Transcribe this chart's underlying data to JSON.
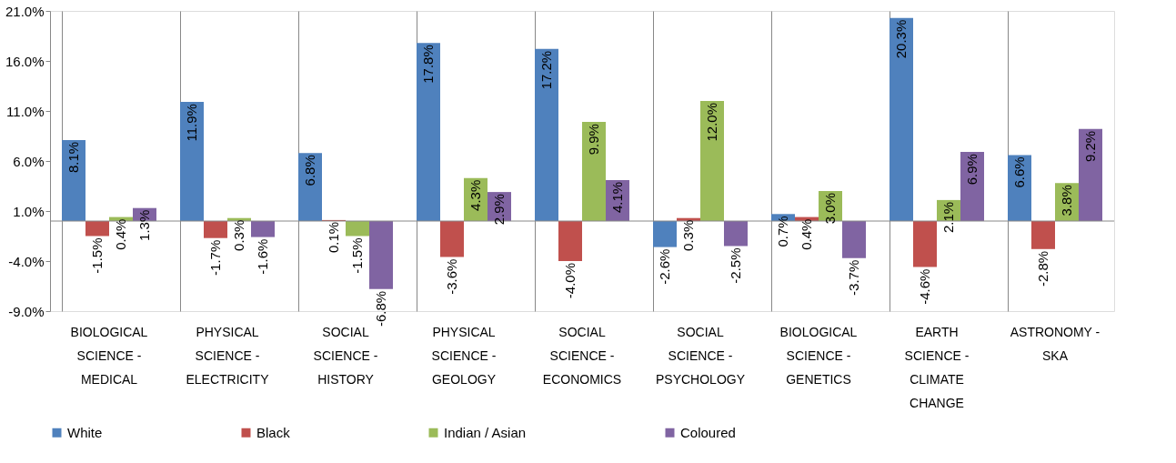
{
  "chart_data": {
    "type": "bar",
    "categories": [
      "BIOLOGICAL SCIENCE - MEDICAL",
      "PHYSICAL SCIENCE - ELECTRICITY",
      "SOCIAL SCIENCE - HISTORY",
      "PHYSICAL SCIENCE - GEOLOGY",
      "SOCIAL SCIENCE - ECONOMICS",
      "SOCIAL SCIENCE - PSYCHOLOGY",
      "BIOLOGICAL SCIENCE - GENETICS",
      "EARTH SCIENCE - CLIMATE CHANGE",
      "ASTRONOMY - SKA"
    ],
    "series": [
      {
        "name": "White",
        "color": "#4f81bd",
        "values": [
          8.1,
          11.9,
          6.8,
          17.8,
          17.2,
          -2.6,
          0.7,
          20.3,
          6.6
        ],
        "value_labels": [
          "8.1%",
          "11.9%",
          "6.8%",
          "17.8%",
          "17.2%",
          "-2.6%",
          "0.7%",
          "20.3%",
          "6.6%"
        ]
      },
      {
        "name": "Black",
        "color": "#c0504d",
        "values": [
          -1.5,
          -1.7,
          0.1,
          -3.6,
          -4.0,
          0.3,
          0.4,
          -4.6,
          -2.8
        ],
        "value_labels": [
          "-1.5%",
          "-1.7%",
          "0.1%",
          "-3.6%",
          "-4.0%",
          "0.3%",
          "0.4%",
          "-4.6%",
          "-2.8%"
        ]
      },
      {
        "name": "Indian / Asian",
        "color": "#9bbb59",
        "values": [
          0.4,
          0.3,
          -1.5,
          4.3,
          9.9,
          12.0,
          3.0,
          2.1,
          3.8
        ],
        "value_labels": [
          "0.4%",
          "0.3%",
          "-1.5%",
          "4.3%",
          "9.9%",
          "12.0%",
          "3.0%",
          "2.1%",
          "3.8%"
        ]
      },
      {
        "name": "Coloured",
        "color": "#8064a2",
        "values": [
          1.3,
          -1.6,
          -6.8,
          2.9,
          4.1,
          -2.5,
          -3.7,
          6.9,
          9.2
        ],
        "value_labels": [
          "1.3%",
          "-1.6%",
          "-6.8%",
          "2.9%",
          "4.1%",
          "-2.5%",
          "-3.7%",
          "6.9%",
          "9.2%"
        ]
      }
    ],
    "ylim": [
      -9,
      21
    ],
    "yticks": [
      {
        "value": -9,
        "label": "-9.0%"
      },
      {
        "value": -4,
        "label": "-4.0%"
      },
      {
        "value": 1,
        "label": "1.0%"
      },
      {
        "value": 6,
        "label": "6.0%"
      },
      {
        "value": 11,
        "label": "11.0%"
      },
      {
        "value": 16,
        "label": "16.0%"
      },
      {
        "value": 21,
        "label": "21.0%"
      }
    ],
    "grid": "x",
    "legend": "bottom"
  }
}
